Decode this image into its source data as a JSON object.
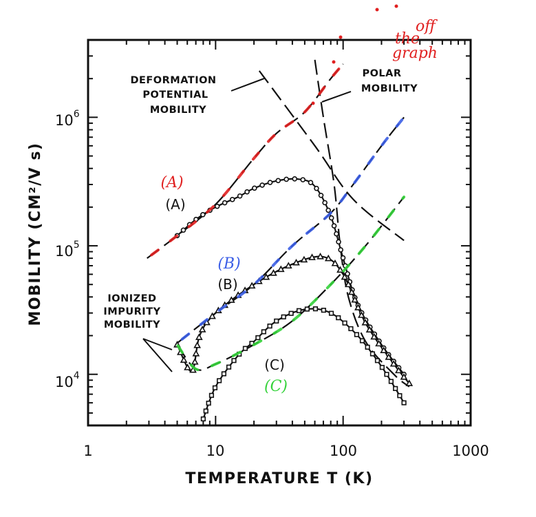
{
  "chart_data": {
    "type": "line",
    "xlabel": "TEMPERATURE  T (K)",
    "ylabel": "MOBILITY   (CM²/V s)",
    "xscale": "log",
    "yscale": "log",
    "xlim": [
      1,
      1000
    ],
    "ylim": [
      4000,
      4000000
    ],
    "x_ticks": [
      {
        "value": 1,
        "label": "1"
      },
      {
        "value": 10,
        "label": "10"
      },
      {
        "value": 100,
        "label": "100"
      },
      {
        "value": 1000,
        "label": "1000"
      }
    ],
    "y_ticks": [
      {
        "value": 10000,
        "base": "10",
        "exp": "4"
      },
      {
        "value": 100000,
        "base": "10",
        "exp": "5"
      },
      {
        "value": 1000000,
        "base": "10",
        "exp": "6"
      }
    ],
    "grid": false,
    "annotations": {
      "deformation": [
        "DEFORMATION",
        "POTENTIAL",
        "MOBILITY"
      ],
      "polar": [
        "POLAR",
        "MOBILITY"
      ],
      "ionized": [
        "IONIZED",
        "IMPURITY",
        "MOBILITY"
      ],
      "label_a": "(A)",
      "label_b": "(B)",
      "label_c": "(C)",
      "hand_a": "(A)",
      "hand_b": "(B)",
      "hand_c": "(C)",
      "hand_note": [
        "off",
        "the",
        "graph"
      ]
    },
    "series": [
      {
        "id": "deformation",
        "style": "dashed",
        "points": [
          [
            22,
            2300000
          ],
          [
            60,
            600000
          ],
          [
            120,
            230000
          ],
          [
            300,
            110000
          ]
        ]
      },
      {
        "id": "polar",
        "style": "dashed",
        "points": [
          [
            60,
            2800000
          ],
          [
            70,
            1000000
          ],
          [
            85,
            300000
          ],
          [
            95,
            100000
          ],
          [
            110,
            40000
          ],
          [
            150,
            18000
          ],
          [
            250,
            10000
          ],
          [
            330,
            8000
          ]
        ]
      },
      {
        "id": "ionized-A",
        "style": "dashed",
        "points": [
          [
            2.9,
            80000
          ],
          [
            5,
            120000
          ],
          [
            10,
            210000
          ],
          [
            20,
            480000
          ],
          [
            30,
            750000
          ],
          [
            50,
            1100000
          ],
          [
            80,
            2000000
          ],
          [
            100,
            2600000
          ]
        ]
      },
      {
        "id": "ionized-B",
        "style": "dashed",
        "points": [
          [
            5,
            17500
          ],
          [
            10,
            30000
          ],
          [
            20,
            50000
          ],
          [
            40,
            100000
          ],
          [
            80,
            180000
          ],
          [
            120,
            300000
          ],
          [
            200,
            600000
          ],
          [
            300,
            1000000
          ]
        ]
      },
      {
        "id": "ionized-C",
        "style": "dashed",
        "points": [
          [
            5,
            17000
          ],
          [
            7,
            11000
          ],
          [
            10,
            12000
          ],
          [
            20,
            17000
          ],
          [
            40,
            26000
          ],
          [
            80,
            50000
          ],
          [
            150,
            100000
          ],
          [
            300,
            240000
          ]
        ]
      },
      {
        "id": "A",
        "name": "(A)",
        "style": "solid",
        "marker": "circle",
        "points": [
          [
            5,
            120000
          ],
          [
            7,
            160000
          ],
          [
            10,
            200000
          ],
          [
            15,
            240000
          ],
          [
            20,
            280000
          ],
          [
            30,
            320000
          ],
          [
            45,
            330000
          ],
          [
            60,
            290000
          ],
          [
            80,
            170000
          ],
          [
            100,
            80000
          ],
          [
            130,
            35000
          ],
          [
            200,
            17000
          ],
          [
            300,
            10000
          ]
        ]
      },
      {
        "id": "B",
        "name": "(B)",
        "style": "solid",
        "marker": "triangle",
        "points": [
          [
            5,
            17000
          ],
          [
            6.5,
            10500
          ],
          [
            7.5,
            20000
          ],
          [
            10,
            30000
          ],
          [
            20,
            50000
          ],
          [
            40,
            72000
          ],
          [
            70,
            82000
          ],
          [
            100,
            60000
          ],
          [
            150,
            25000
          ],
          [
            250,
            12000
          ],
          [
            330,
            8500
          ]
        ]
      },
      {
        "id": "C",
        "name": "(C)",
        "style": "solid",
        "marker": "square",
        "points": [
          [
            8,
            4500
          ],
          [
            10,
            8000
          ],
          [
            15,
            14000
          ],
          [
            20,
            18000
          ],
          [
            30,
            26000
          ],
          [
            50,
            32000
          ],
          [
            80,
            30000
          ],
          [
            130,
            20000
          ],
          [
            200,
            11500
          ],
          [
            300,
            6000
          ]
        ]
      }
    ],
    "colors": {
      "ink": "#111111",
      "hand_red": "#e02020",
      "hand_blue": "#3b5ee6",
      "hand_green": "#34d23a"
    }
  }
}
